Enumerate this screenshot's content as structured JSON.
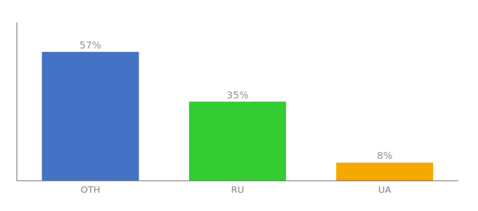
{
  "chart_data": {
    "type": "bar",
    "categories": [
      "OTH",
      "RU",
      "UA"
    ],
    "values": [
      57,
      35,
      8
    ],
    "value_labels": [
      "57%",
      "35%",
      "8%"
    ],
    "colors": [
      "#4472c4",
      "#33cc33",
      "#f5a800"
    ],
    "ylim": [
      0,
      70
    ],
    "grid": false,
    "data_labels": true,
    "tick_labels": "x"
  }
}
